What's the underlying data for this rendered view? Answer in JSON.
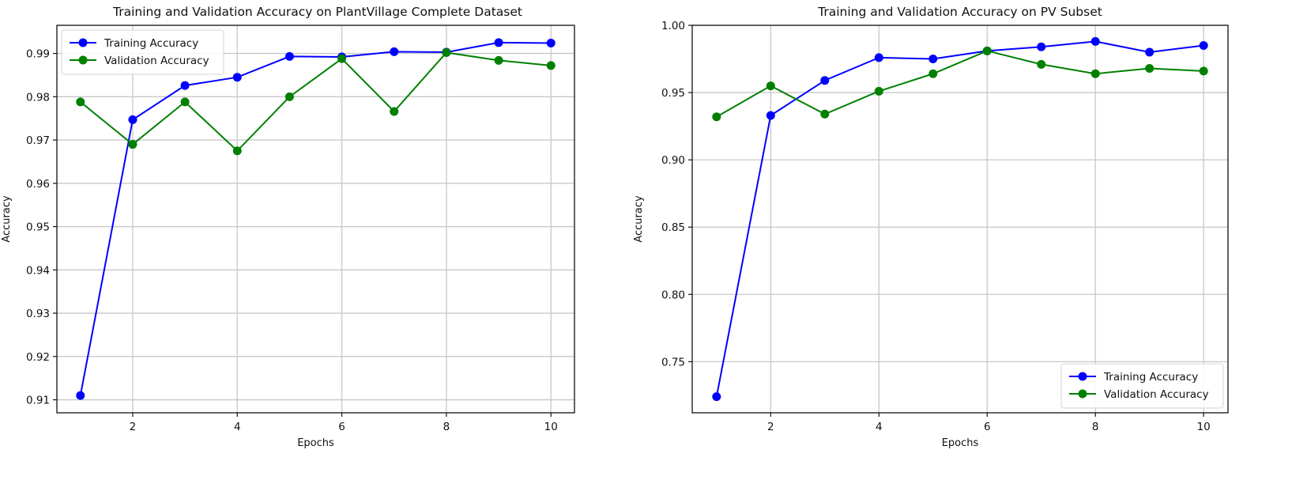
{
  "chart_data": [
    {
      "type": "line",
      "title": "Training and Validation Accuracy on PlantVillage Complete Dataset",
      "xlabel": "Epochs",
      "ylabel": "Accuracy",
      "x": [
        1,
        2,
        3,
        4,
        5,
        6,
        7,
        8,
        9,
        10
      ],
      "xticks": [
        2,
        4,
        6,
        8,
        10
      ],
      "yticks": [
        0.91,
        0.92,
        0.93,
        0.94,
        0.95,
        0.96,
        0.97,
        0.98,
        0.99
      ],
      "ytick_labels": [
        "0.91",
        "0.92",
        "0.93",
        "0.94",
        "0.95",
        "0.96",
        "0.97",
        "0.98",
        "0.99"
      ],
      "xlim": [
        0.55,
        10.45
      ],
      "ylim": [
        0.907,
        0.9965
      ],
      "grid": true,
      "legend_position": "upper left",
      "series": [
        {
          "name": "Training Accuracy",
          "color": "#0000ff",
          "marker": "o",
          "values": [
            0.911,
            0.9747,
            0.9826,
            0.9845,
            0.9893,
            0.9892,
            0.9904,
            0.9903,
            0.9925,
            0.9924
          ]
        },
        {
          "name": "Validation Accuracy",
          "color": "#008000",
          "marker": "o",
          "values": [
            0.9788,
            0.969,
            0.9788,
            0.9675,
            0.98,
            0.9888,
            0.9766,
            0.9902,
            0.9884,
            0.9872
          ]
        }
      ]
    },
    {
      "type": "line",
      "title": "Training and Validation Accuracy on PV Subset",
      "xlabel": "Epochs",
      "ylabel": "Accuracy",
      "x": [
        1,
        2,
        3,
        4,
        5,
        6,
        7,
        8,
        9,
        10
      ],
      "xticks": [
        2,
        4,
        6,
        8,
        10
      ],
      "yticks": [
        0.75,
        0.8,
        0.85,
        0.9,
        0.95,
        1.0
      ],
      "ytick_labels": [
        "0.75",
        "0.80",
        "0.85",
        "0.90",
        "0.95",
        "1.00"
      ],
      "xlim": [
        0.55,
        10.45
      ],
      "ylim": [
        0.712,
        1.0
      ],
      "grid": true,
      "legend_position": "lower right",
      "series": [
        {
          "name": "Training Accuracy",
          "color": "#0000ff",
          "marker": "o",
          "values": [
            0.724,
            0.933,
            0.959,
            0.976,
            0.975,
            0.981,
            0.984,
            0.988,
            0.98,
            0.985
          ]
        },
        {
          "name": "Validation Accuracy",
          "color": "#008000",
          "marker": "o",
          "values": [
            0.932,
            0.955,
            0.934,
            0.951,
            0.964,
            0.981,
            0.971,
            0.964,
            0.968,
            0.966
          ]
        }
      ]
    }
  ]
}
